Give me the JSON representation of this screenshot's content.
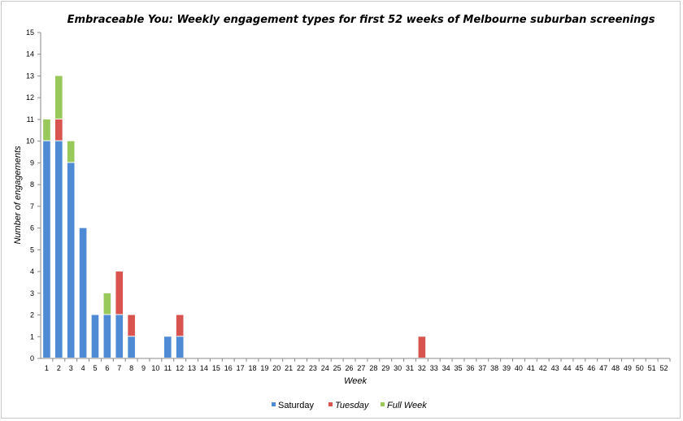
{
  "chart_data": {
    "type": "bar",
    "stacked": true,
    "title": "Embraceable You: Weekly engagement types for first 52 weeks of Melbourne suburban screenings",
    "xlabel": "Week",
    "ylabel": "Number of engagements",
    "ylim": [
      0,
      15
    ],
    "yticks": [
      "0",
      "1",
      "2",
      "3",
      "4",
      "5",
      "6",
      "7",
      "8",
      "9",
      "10",
      "11",
      "12",
      "13",
      "14",
      "15"
    ],
    "categories": [
      "1",
      "2",
      "3",
      "4",
      "5",
      "6",
      "7",
      "8",
      "9",
      "10",
      "11",
      "12",
      "13",
      "14",
      "15",
      "16",
      "17",
      "18",
      "19",
      "20",
      "21",
      "22",
      "23",
      "24",
      "25",
      "26",
      "27",
      "28",
      "29",
      "30",
      "31",
      "32",
      "33",
      "34",
      "35",
      "36",
      "37",
      "38",
      "39",
      "40",
      "41",
      "42",
      "43",
      "44",
      "45",
      "46",
      "47",
      "48",
      "49",
      "50",
      "51",
      "52"
    ],
    "series": [
      {
        "name": "Saturday",
        "color": "#4f8ad4",
        "values": [
          10,
          10,
          9,
          6,
          2,
          2,
          2,
          1,
          0,
          0,
          1,
          1,
          0,
          0,
          0,
          0,
          0,
          0,
          0,
          0,
          0,
          0,
          0,
          0,
          0,
          0,
          0,
          0,
          0,
          0,
          0,
          0,
          0,
          0,
          0,
          0,
          0,
          0,
          0,
          0,
          0,
          0,
          0,
          0,
          0,
          0,
          0,
          0,
          0,
          0,
          0,
          0
        ]
      },
      {
        "name": "Tuesday",
        "color": "#d9544f",
        "values": [
          0,
          1,
          0,
          0,
          0,
          0,
          2,
          1,
          0,
          0,
          0,
          1,
          0,
          0,
          0,
          0,
          0,
          0,
          0,
          0,
          0,
          0,
          0,
          0,
          0,
          0,
          0,
          0,
          0,
          0,
          0,
          1,
          0,
          0,
          0,
          0,
          0,
          0,
          0,
          0,
          0,
          0,
          0,
          0,
          0,
          0,
          0,
          0,
          0,
          0,
          0,
          0
        ]
      },
      {
        "name": "Full Week",
        "color": "#98c95a",
        "values": [
          1,
          2,
          1,
          0,
          0,
          1,
          0,
          0,
          0,
          0,
          0,
          0,
          0,
          0,
          0,
          0,
          0,
          0,
          0,
          0,
          0,
          0,
          0,
          0,
          0,
          0,
          0,
          0,
          0,
          0,
          0,
          0,
          0,
          0,
          0,
          0,
          0,
          0,
          0,
          0,
          0,
          0,
          0,
          0,
          0,
          0,
          0,
          0,
          0,
          0,
          0,
          0
        ]
      }
    ],
    "grid": false,
    "legend": "bottom"
  }
}
